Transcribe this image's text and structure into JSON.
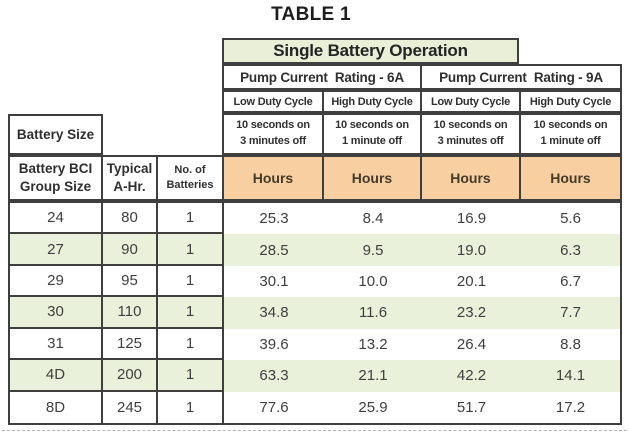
{
  "title": "TABLE 1",
  "header": {
    "banner": "Single Battery Operation",
    "pump_ratings": [
      "Pump Current  Rating - 6A",
      "Pump Current  Rating - 9A"
    ],
    "duty_cycles": [
      "Low Duty Cycle",
      "High Duty Cycle",
      "Low Duty Cycle",
      "High Duty Cycle"
    ],
    "timings": [
      {
        "line1": "10 seconds on",
        "line2": "3 minutes off"
      },
      {
        "line1": "10 seconds on",
        "line2": "1 minute off"
      },
      {
        "line1": "10 seconds on",
        "line2": "3 minutes off"
      },
      {
        "line1": "10 seconds on",
        "line2": "1 minute off"
      }
    ],
    "battery_size_label": "Battery Size",
    "col_headers": [
      {
        "line1": "Battery BCI",
        "line2": "Group Size"
      },
      {
        "line1": "Typical",
        "line2": "A-Hr."
      },
      {
        "line1": "No. of",
        "line2": "Batteries"
      }
    ],
    "hours_label": "Hours"
  },
  "rows": [
    {
      "group": "24",
      "ahr": "80",
      "batteries": "1",
      "hours": [
        "25.3",
        "8.4",
        "16.9",
        "5.6"
      ]
    },
    {
      "group": "27",
      "ahr": "90",
      "batteries": "1",
      "hours": [
        "28.5",
        "9.5",
        "19.0",
        "6.3"
      ]
    },
    {
      "group": "29",
      "ahr": "95",
      "batteries": "1",
      "hours": [
        "30.1",
        "10.0",
        "20.1",
        "6.7"
      ]
    },
    {
      "group": "30",
      "ahr": "110",
      "batteries": "1",
      "hours": [
        "34.8",
        "11.6",
        "23.2",
        "7.7"
      ]
    },
    {
      "group": "31",
      "ahr": "125",
      "batteries": "1",
      "hours": [
        "39.6",
        "13.2",
        "26.4",
        "8.8"
      ]
    },
    {
      "group": "4D",
      "ahr": "200",
      "batteries": "1",
      "hours": [
        "63.3",
        "21.1",
        "42.2",
        "14.1"
      ]
    },
    {
      "group": "8D",
      "ahr": "245",
      "batteries": "1",
      "hours": [
        "77.6",
        "25.9",
        "51.7",
        "17.2"
      ]
    }
  ],
  "colors": {
    "header_green": "#e9f0d7",
    "row_stripe_green": "#e9f1da",
    "hours_orange": "#f8cfa1",
    "border": "#3f3f3f"
  }
}
